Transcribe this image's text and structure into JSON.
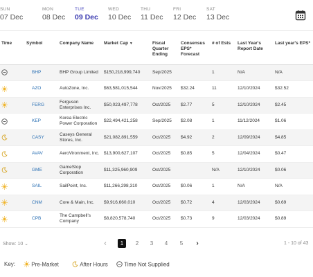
{
  "days": [
    {
      "dow": "SUN",
      "date": "07 Dec",
      "active": false
    },
    {
      "dow": "MON",
      "date": "08 Dec",
      "active": false
    },
    {
      "dow": "TUE",
      "date": "09 Dec",
      "active": true
    },
    {
      "dow": "WED",
      "date": "10 Dec",
      "active": false
    },
    {
      "dow": "THU",
      "date": "11 Dec",
      "active": false
    },
    {
      "dow": "FRI",
      "date": "12 Dec",
      "active": false
    },
    {
      "dow": "SAT",
      "date": "13 Dec",
      "active": false
    }
  ],
  "calendar_icon": "calendar-icon",
  "headers": {
    "time": "Time",
    "symbol": "Symbol",
    "company": "Company Name",
    "market_cap": "Market Cap",
    "fiscal": "Fiscal Quarter Ending",
    "consensus": "Consensus EPS* Forecast",
    "ests": "# of Ests",
    "last_report": "Last Year's Report Date",
    "last_eps": "Last year's EPS*"
  },
  "rows": [
    {
      "time": "not-supplied",
      "symbol": "BHP",
      "company": "BHP Group Limited",
      "cap": "$150,218,999,740",
      "fiscal": "Sep/2025",
      "eps": "",
      "ests": "1",
      "lastdate": "N/A",
      "lasteps": "N/A"
    },
    {
      "time": "pre-market",
      "symbol": "AZO",
      "company": "AutoZone, Inc.",
      "cap": "$63,581,015,544",
      "fiscal": "Nov/2025",
      "eps": "$32.24",
      "ests": "11",
      "lastdate": "12/10/2024",
      "lasteps": "$32.52"
    },
    {
      "time": "pre-market",
      "symbol": "FERG",
      "company": "Ferguson Enterprises Inc.",
      "cap": "$50,023,497,778",
      "fiscal": "Oct/2025",
      "eps": "$2.77",
      "ests": "5",
      "lastdate": "12/10/2024",
      "lasteps": "$2.45"
    },
    {
      "time": "not-supplied",
      "symbol": "KEP",
      "company": "Korea Electric Power Corporation",
      "cap": "$22,494,421,258",
      "fiscal": "Sep/2025",
      "eps": "$2.08",
      "ests": "1",
      "lastdate": "11/12/2024",
      "lasteps": "$1.06"
    },
    {
      "time": "after-hours",
      "symbol": "CASY",
      "company": "Caseys General Stores, Inc.",
      "cap": "$21,082,891,559",
      "fiscal": "Oct/2025",
      "eps": "$4.92",
      "ests": "2",
      "lastdate": "12/09/2024",
      "lasteps": "$4.85"
    },
    {
      "time": "after-hours",
      "symbol": "AVAV",
      "company": "AeroVironment, Inc.",
      "cap": "$13,900,627,107",
      "fiscal": "Oct/2025",
      "eps": "$0.85",
      "ests": "5",
      "lastdate": "12/04/2024",
      "lasteps": "$0.47"
    },
    {
      "time": "after-hours",
      "symbol": "GME",
      "company": "GameStop Corporation",
      "cap": "$11,325,960,909",
      "fiscal": "Oct/2025",
      "eps": "",
      "ests": "N/A",
      "lastdate": "12/10/2024",
      "lasteps": "$0.06"
    },
    {
      "time": "pre-market",
      "symbol": "SAIL",
      "company": "SailPoint, Inc.",
      "cap": "$11,266,298,310",
      "fiscal": "Oct/2025",
      "eps": "$0.06",
      "ests": "1",
      "lastdate": "N/A",
      "lasteps": "N/A"
    },
    {
      "time": "pre-market",
      "symbol": "CNM",
      "company": "Core & Main, Inc.",
      "cap": "$9,916,660,010",
      "fiscal": "Oct/2025",
      "eps": "$0.72",
      "ests": "4",
      "lastdate": "12/03/2024",
      "lasteps": "$0.69"
    },
    {
      "time": "pre-market",
      "symbol": "CPB",
      "company": "The Campbell's Company",
      "cap": "$8,820,578,740",
      "fiscal": "Oct/2025",
      "eps": "$0.73",
      "ests": "9",
      "lastdate": "12/03/2024",
      "lasteps": "$0.89"
    }
  ],
  "pagination": {
    "show_label": "Show:",
    "show_value": "10",
    "pages": [
      "1",
      "2",
      "3",
      "4",
      "5"
    ],
    "current": "1",
    "range_text": "1 - 10 of 43"
  },
  "key": {
    "label": "Key:",
    "pre_market": "Pre-Market",
    "after_hours": "After Hours",
    "not_supplied": "Time Not Supplied"
  },
  "colors": {
    "accent": "#3a3ab0",
    "link": "#2a6fb3",
    "sun": "#f0b429"
  }
}
